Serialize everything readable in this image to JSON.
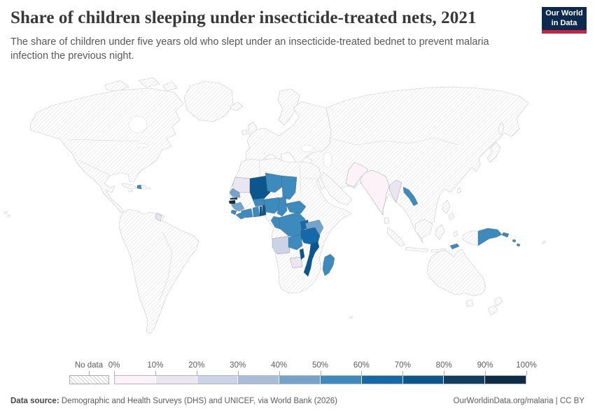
{
  "header": {
    "title": "Share of children sleeping under insecticide-treated nets, 2021",
    "subtitle": "The share of children under five years old who slept under an insecticide-treated bednet to prevent malaria infection the previous night.",
    "logo": {
      "line1": "Our World",
      "line2": "in Data"
    }
  },
  "legend": {
    "no_data_label": "No data",
    "tick_labels": [
      "0%",
      "10%",
      "20%",
      "30%",
      "40%",
      "50%",
      "60%",
      "70%",
      "80%",
      "90%",
      "100%"
    ],
    "bin_colors": [
      "#fdf2f7",
      "#e9e6f1",
      "#cdd3e7",
      "#a9bdd9",
      "#74a3cb",
      "#3d8bbc",
      "#1569a9",
      "#0b568c",
      "#103e61",
      "#0d2c46"
    ]
  },
  "footer": {
    "source_label": "Data source:",
    "source_text": " Demographic and Health Surveys (DHS) and UNICEF, via World Bank (2026)",
    "rights_text": "OurWorldinData.org/malaria | CC BY"
  },
  "colors": {
    "owid_navy": "#0d2a4e",
    "owid_red": "#cb2440",
    "hatch_line": "#d6d6d9",
    "country_border": "#c9c9cd"
  },
  "chart_data": {
    "type": "choropleth-map",
    "title": "Share of children sleeping under insecticide-treated nets, 2021",
    "year": "2021",
    "unit": "%",
    "legend_bins": [
      {
        "range": "0-10%",
        "color": "#fdf2f7"
      },
      {
        "range": "10-20%",
        "color": "#e9e6f1"
      },
      {
        "range": "20-30%",
        "color": "#cdd3e7"
      },
      {
        "range": "30-40%",
        "color": "#a9bdd9"
      },
      {
        "range": "40-50%",
        "color": "#74a3cb"
      },
      {
        "range": "50-60%",
        "color": "#3d8bbc"
      },
      {
        "range": "60-70%",
        "color": "#1569a9"
      },
      {
        "range": "70-80%",
        "color": "#0b568c"
      },
      {
        "range": "80-90%",
        "color": "#103e61"
      },
      {
        "range": "90-100%",
        "color": "#0d2c46"
      }
    ],
    "countries": [
      {
        "id": "haiti",
        "name": "Haiti",
        "bin": "50-60%",
        "approx_value": 55,
        "color": "#3d8bbc"
      },
      {
        "id": "guyana",
        "name": "Guyana",
        "bin": "10-20%",
        "approx_value": 15,
        "color": "#e9e6f1"
      },
      {
        "id": "mauritania",
        "name": "Mauritania",
        "bin": "10-20%",
        "approx_value": 15,
        "color": "#e9e6f1"
      },
      {
        "id": "senegal",
        "name": "Senegal",
        "bin": "40-50%",
        "approx_value": 45,
        "color": "#74a3cb"
      },
      {
        "id": "gambia",
        "name": "Gambia",
        "bin": "80-90%",
        "approx_value": 85,
        "color": "#103e61"
      },
      {
        "id": "guinea-bissau",
        "name": "Guinea-Bissau",
        "bin": "90-100%",
        "approx_value": 95,
        "color": "#0d2c46"
      },
      {
        "id": "guinea",
        "name": "Guinea",
        "bin": "40-50%",
        "approx_value": 45,
        "color": "#74a3cb"
      },
      {
        "id": "sierra-leone",
        "name": "Sierra Leone",
        "bin": "50-60%",
        "approx_value": 55,
        "color": "#3d8bbc"
      },
      {
        "id": "liberia",
        "name": "Liberia",
        "bin": "50-60%",
        "approx_value": 55,
        "color": "#3d8bbc"
      },
      {
        "id": "mali",
        "name": "Mali",
        "bin": "70-80%",
        "approx_value": 75,
        "color": "#0b568c"
      },
      {
        "id": "burkina-faso",
        "name": "Burkina Faso",
        "bin": "50-60%",
        "approx_value": 55,
        "color": "#3d8bbc"
      },
      {
        "id": "cote-divoire",
        "name": "Côte d'Ivoire",
        "bin": "50-60%",
        "approx_value": 55,
        "color": "#3d8bbc"
      },
      {
        "id": "ghana",
        "name": "Ghana",
        "bin": "50-60%",
        "approx_value": 55,
        "color": "#3d8bbc"
      },
      {
        "id": "togo",
        "name": "Togo",
        "bin": "70-80%",
        "approx_value": 75,
        "color": "#0b568c"
      },
      {
        "id": "benin",
        "name": "Benin",
        "bin": "70-80%",
        "approx_value": 75,
        "color": "#0b568c"
      },
      {
        "id": "niger",
        "name": "Niger",
        "bin": "50-60%",
        "approx_value": 55,
        "color": "#3d8bbc"
      },
      {
        "id": "nigeria",
        "name": "Nigeria",
        "bin": "50-60%",
        "approx_value": 55,
        "color": "#3d8bbc"
      },
      {
        "id": "chad",
        "name": "Chad",
        "bin": "50-60%",
        "approx_value": 55,
        "color": "#3d8bbc"
      },
      {
        "id": "cameroon",
        "name": "Cameroon",
        "bin": "50-60%",
        "approx_value": 55,
        "color": "#3d8bbc"
      },
      {
        "id": "central-african-republic",
        "name": "Central African Republic",
        "bin": "50-60%",
        "approx_value": 55,
        "color": "#3d8bbc"
      },
      {
        "id": "congo",
        "name": "Congo",
        "bin": "50-60%",
        "approx_value": 55,
        "color": "#3d8bbc"
      },
      {
        "id": "dr-congo",
        "name": "Democratic Republic of Congo",
        "bin": "50-60%",
        "approx_value": 55,
        "color": "#3d8bbc"
      },
      {
        "id": "angola",
        "name": "Angola",
        "bin": "20-30%",
        "approx_value": 25,
        "color": "#cdd3e7"
      },
      {
        "id": "zambia",
        "name": "Zambia",
        "bin": "50-60%",
        "approx_value": 55,
        "color": "#3d8bbc"
      },
      {
        "id": "zimbabwe",
        "name": "Zimbabwe",
        "bin": "10-20%",
        "approx_value": 15,
        "color": "#e9e6f1"
      },
      {
        "id": "malawi",
        "name": "Malawi",
        "bin": "70-80%",
        "approx_value": 75,
        "color": "#0b568c"
      },
      {
        "id": "mozambique",
        "name": "Mozambique",
        "bin": "70-80%",
        "approx_value": 75,
        "color": "#0b568c"
      },
      {
        "id": "tanzania",
        "name": "Tanzania",
        "bin": "60-70%",
        "approx_value": 65,
        "color": "#1569a9"
      },
      {
        "id": "kenya",
        "name": "Kenya",
        "bin": "40-50%",
        "approx_value": 45,
        "color": "#74a3cb"
      },
      {
        "id": "uganda",
        "name": "Uganda",
        "bin": "60-70%",
        "approx_value": 65,
        "color": "#1569a9"
      },
      {
        "id": "rwanda",
        "name": "Rwanda",
        "bin": "60-70%",
        "approx_value": 65,
        "color": "#1569a9"
      },
      {
        "id": "burundi",
        "name": "Burundi",
        "bin": "60-70%",
        "approx_value": 65,
        "color": "#1569a9"
      },
      {
        "id": "madagascar",
        "name": "Madagascar",
        "bin": "50-60%",
        "approx_value": 55,
        "color": "#3d8bbc"
      },
      {
        "id": "india",
        "name": "India",
        "bin": "0-10%",
        "approx_value": 5,
        "color": "#fdf2f7"
      },
      {
        "id": "pakistan",
        "name": "Pakistan",
        "bin": "0-10%",
        "approx_value": 5,
        "color": "#fdf2f7"
      },
      {
        "id": "myanmar",
        "name": "Myanmar",
        "bin": "10-20%",
        "approx_value": 15,
        "color": "#e9e6f1"
      },
      {
        "id": "laos",
        "name": "Laos",
        "bin": "50-60%",
        "approx_value": 55,
        "color": "#3d8bbc"
      },
      {
        "id": "papua-new-guinea",
        "name": "Papua New Guinea",
        "bin": "50-60%",
        "approx_value": 55,
        "color": "#3d8bbc"
      },
      {
        "id": "timor-leste",
        "name": "Timor-Leste",
        "bin": "50-60%",
        "approx_value": 55,
        "color": "#3d8bbc"
      },
      {
        "id": "solomon-islands",
        "name": "Solomon Islands",
        "bin": "50-60%",
        "approx_value": 55,
        "color": "#3d8bbc"
      }
    ]
  }
}
